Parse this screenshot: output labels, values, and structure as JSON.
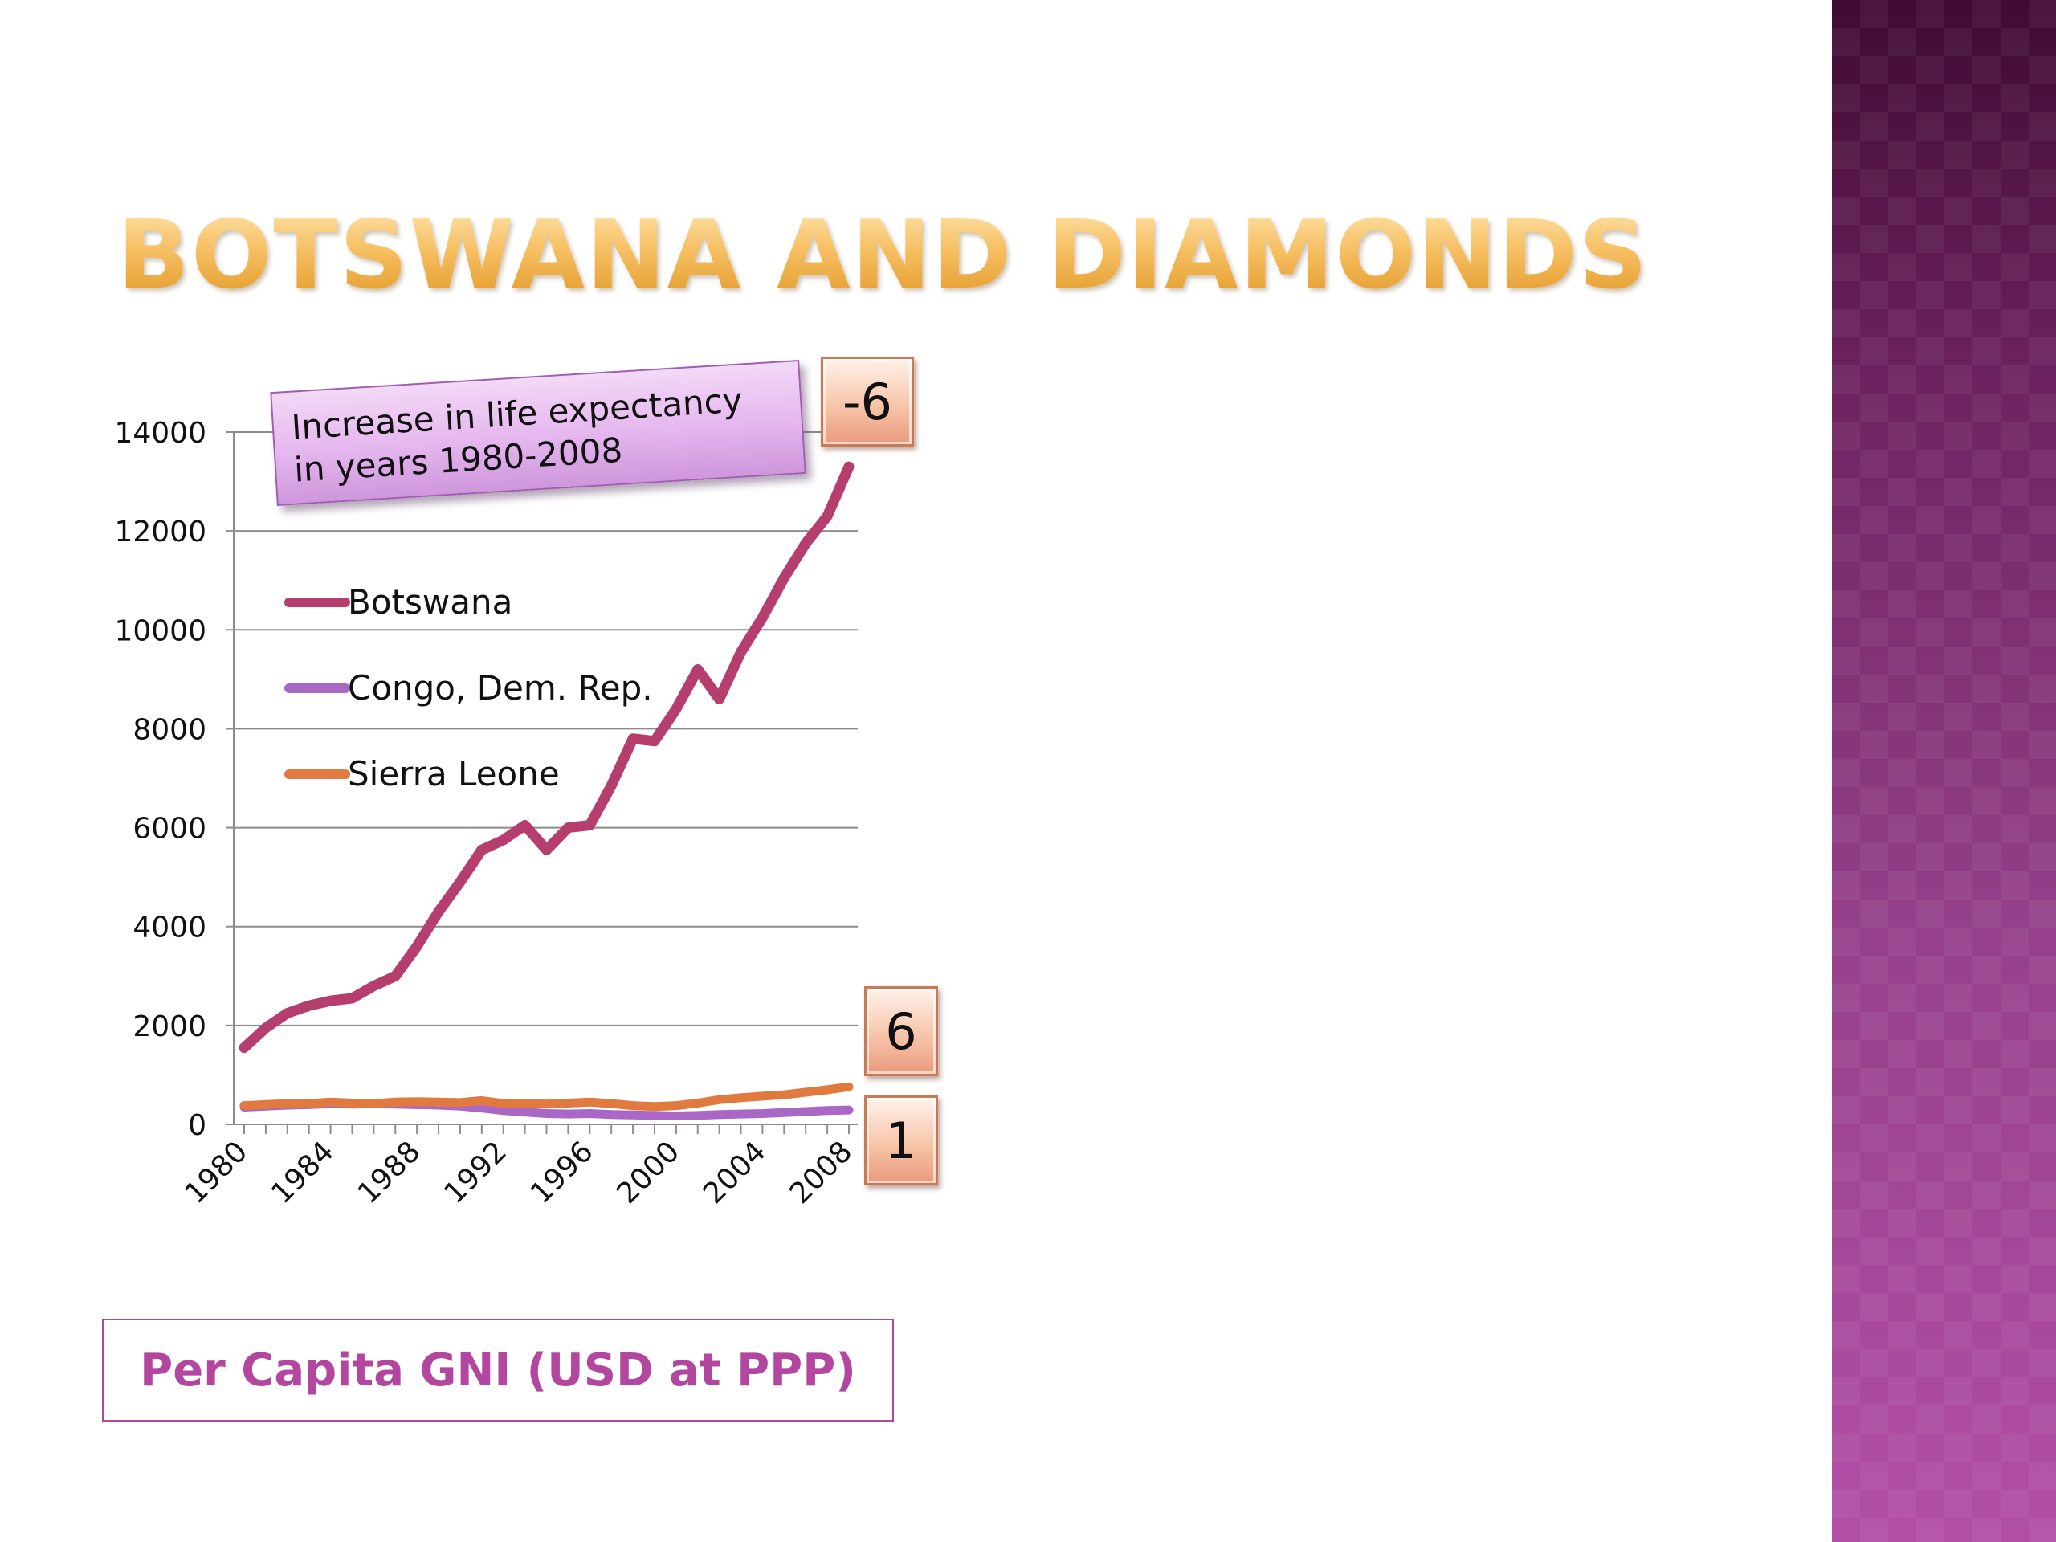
{
  "slide": {
    "title": "Botswana and Diamonds",
    "callout": {
      "line1": "Increase in life expectancy",
      "line2": "in years 1980-2008"
    },
    "value_boxes": {
      "botswana": "-6",
      "sierra_leone": "6",
      "congo": "1"
    },
    "caption": "Per Capita GNI (USD at PPP)"
  },
  "chart_data": {
    "type": "line",
    "title": "",
    "xlabel": "",
    "ylabel": "",
    "ylim": [
      0,
      14000
    ],
    "yticks": [
      0,
      2000,
      4000,
      6000,
      8000,
      10000,
      12000,
      14000
    ],
    "x": [
      1980,
      1981,
      1982,
      1983,
      1984,
      1985,
      1986,
      1987,
      1988,
      1989,
      1990,
      1991,
      1992,
      1993,
      1994,
      1995,
      1996,
      1997,
      1998,
      1999,
      2000,
      2001,
      2002,
      2003,
      2004,
      2005,
      2006,
      2007,
      2008
    ],
    "xtick_labels": [
      "1980",
      "1984",
      "1988",
      "1992",
      "1996",
      "2000",
      "2004",
      "2008"
    ],
    "grid": true,
    "legend_position": "left",
    "series": [
      {
        "name": "Botswana",
        "color": "#b63e6e",
        "values": [
          1550,
          1950,
          2250,
          2400,
          2500,
          2550,
          2800,
          3000,
          3600,
          4300,
          4900,
          5550,
          5750,
          6050,
          5550,
          6000,
          6050,
          6850,
          7800,
          7750,
          8400,
          9200,
          8600,
          9550,
          10250,
          11050,
          11750,
          12300,
          13300
        ]
      },
      {
        "name": "Congo, Dem. Rep.",
        "color": "#a967c6",
        "values": [
          350,
          370,
          390,
          400,
          420,
          410,
          420,
          410,
          400,
          390,
          370,
          330,
          280,
          250,
          220,
          210,
          220,
          200,
          190,
          180,
          170,
          180,
          200,
          210,
          220,
          240,
          260,
          280,
          290
        ]
      },
      {
        "name": "Sierra Leone",
        "color": "#e07a3f",
        "values": [
          380,
          400,
          420,
          420,
          450,
          430,
          420,
          450,
          460,
          450,
          440,
          480,
          420,
          430,
          410,
          430,
          450,
          420,
          380,
          360,
          380,
          430,
          500,
          540,
          570,
          600,
          650,
          700,
          760
        ]
      }
    ]
  }
}
